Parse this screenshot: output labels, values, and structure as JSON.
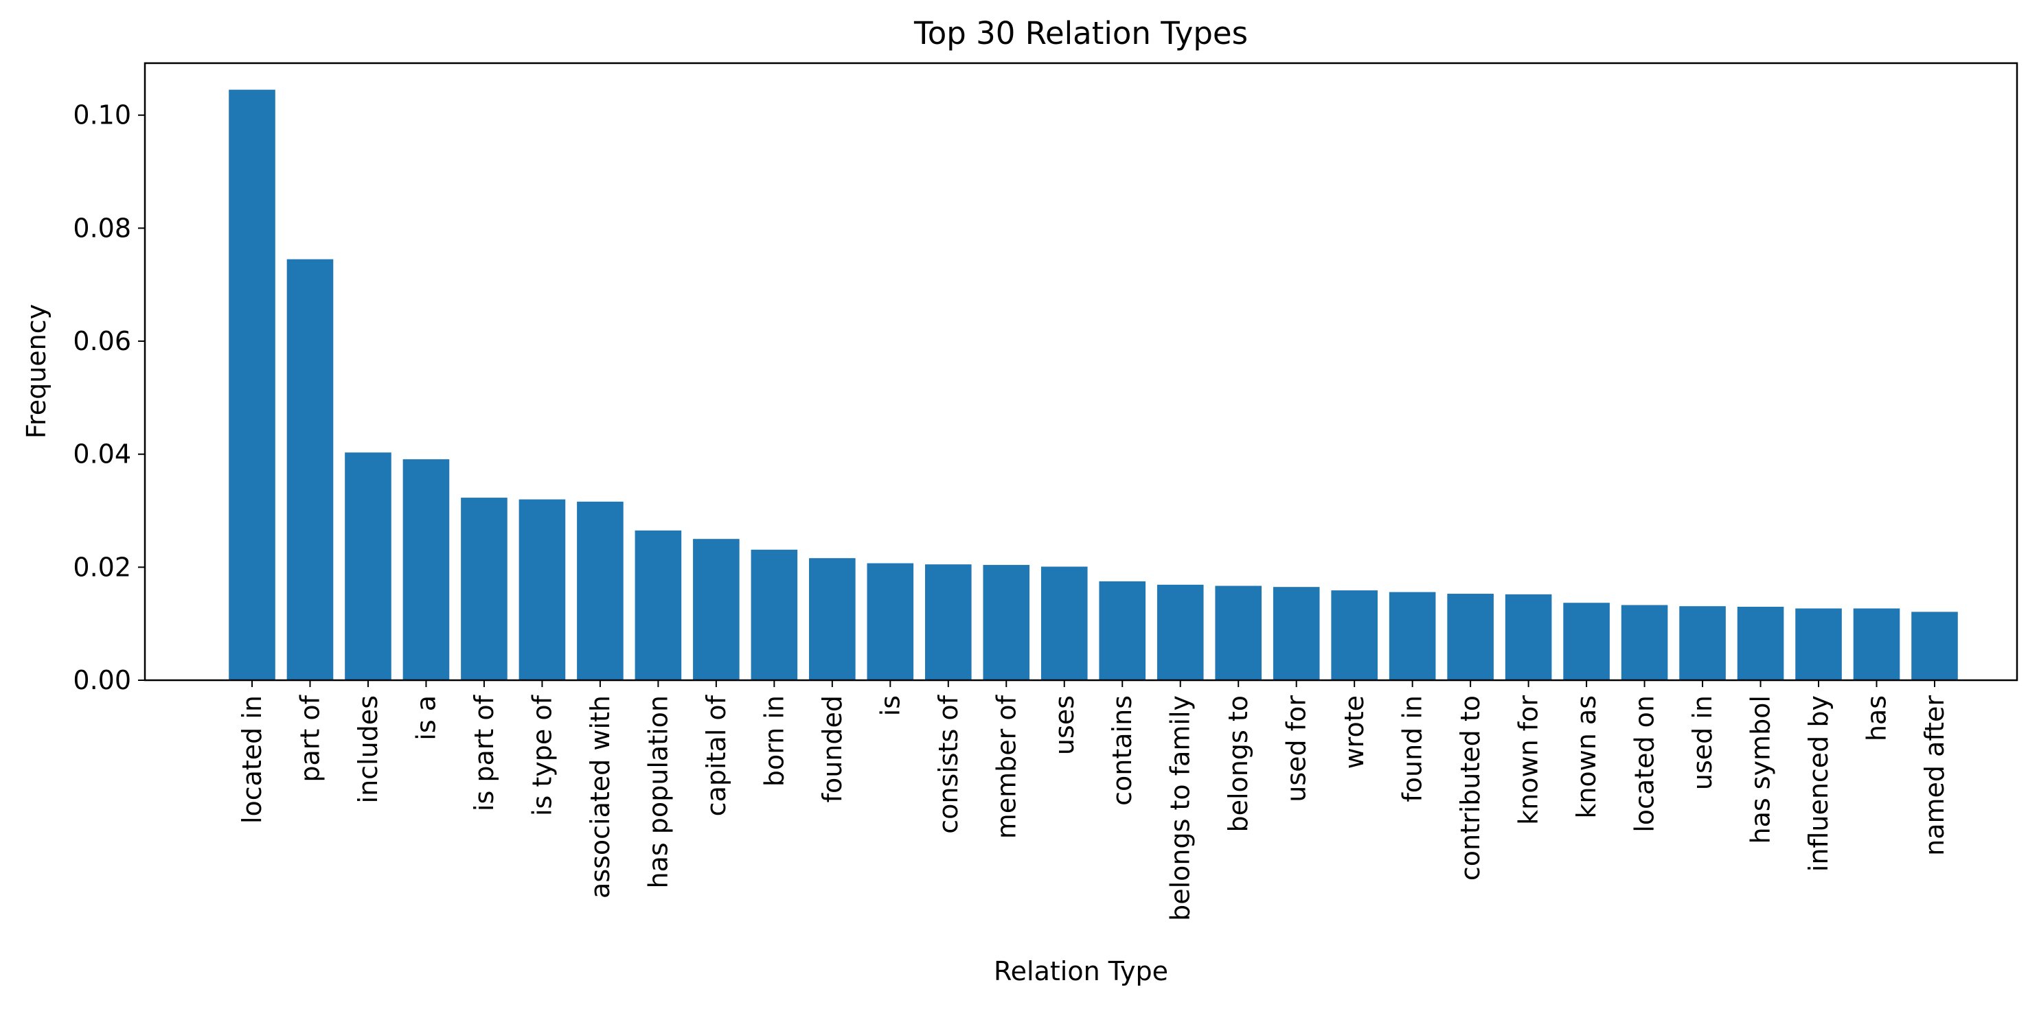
{
  "chart_data": {
    "type": "bar",
    "title": "Top 30 Relation Types",
    "xlabel": "Relation Type",
    "ylabel": "Frequency",
    "ylim": [
      0,
      0.1092
    ],
    "yticks": [
      "0.00",
      "0.02",
      "0.04",
      "0.06",
      "0.08",
      "0.10"
    ],
    "ytick_values": [
      0,
      0.02,
      0.04,
      0.06,
      0.08,
      0.1
    ],
    "grid": false,
    "bar_color": "#1f77b4",
    "categories": [
      "located in",
      "part of",
      "includes",
      "is a",
      "is part of",
      "is type of",
      "associated with",
      "has population",
      "capital of",
      "born in",
      "founded",
      "is",
      "consists of",
      "member of",
      "uses",
      "contains",
      "belongs to family",
      "belongs to",
      "used for",
      "wrote",
      "found in",
      "contributed to",
      "known for",
      "known as",
      "located on",
      "used in",
      "has symbol",
      "influenced by",
      "has",
      "named after"
    ],
    "values": [
      0.1045,
      0.0745,
      0.0403,
      0.0391,
      0.0323,
      0.032,
      0.0316,
      0.0265,
      0.025,
      0.0231,
      0.0216,
      0.0207,
      0.0205,
      0.0204,
      0.0201,
      0.0175,
      0.0169,
      0.0167,
      0.0165,
      0.0159,
      0.0156,
      0.0153,
      0.0152,
      0.0137,
      0.0133,
      0.0131,
      0.013,
      0.0127,
      0.0127,
      0.0121
    ]
  }
}
